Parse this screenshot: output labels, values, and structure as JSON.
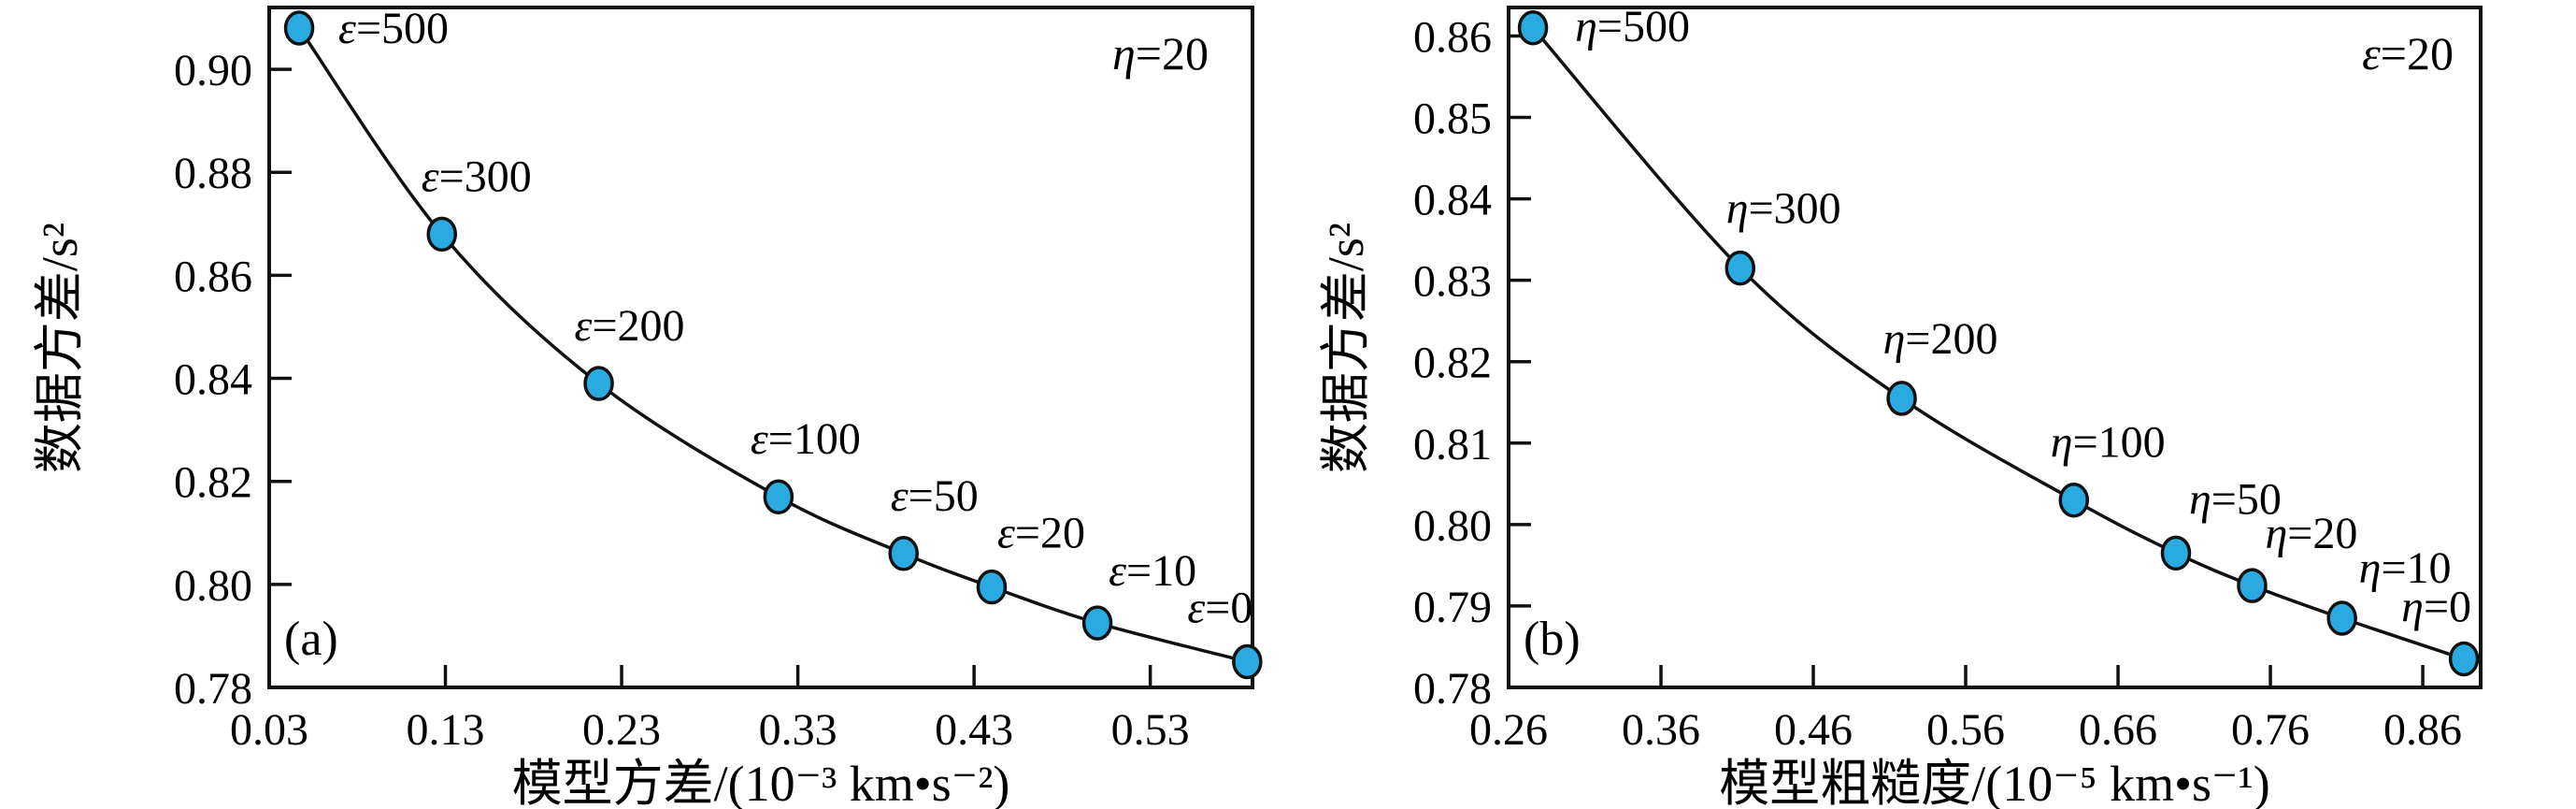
{
  "figure": {
    "background": "#ffffff",
    "colors": {
      "axis": "#111111",
      "curve": "#111111",
      "marker_fill": "#29abe2",
      "marker_stroke": "#111111",
      "text": "#000000"
    }
  },
  "chart_data": [
    {
      "id": "a",
      "type": "line",
      "panel_label": "(a)",
      "annotation": "η=20",
      "xlabel": "模型方差/(10⁻³ km•s⁻²)",
      "ylabel": "数据方差/s²",
      "xlim": [
        0.03,
        0.588
      ],
      "ylim": [
        0.78,
        0.912
      ],
      "xticks": [
        "0.03",
        "0.13",
        "0.23",
        "0.33",
        "0.43",
        "0.53"
      ],
      "yticks": [
        "0.78",
        "0.80",
        "0.82",
        "0.84",
        "0.86",
        "0.88",
        "0.90"
      ],
      "grid": false,
      "legend": false,
      "series": [
        {
          "name": "trade-off-curve-epsilon",
          "points": [
            {
              "label": "ε=500",
              "x": 0.047,
              "y": 0.908,
              "anchor": "start",
              "dx": 42,
              "dy": 16
            },
            {
              "label": "ε=300",
              "x": 0.128,
              "y": 0.868,
              "anchor": "start",
              "dx": -22,
              "dy": -46
            },
            {
              "label": "ε=200",
              "x": 0.217,
              "y": 0.839,
              "anchor": "start",
              "dx": -26,
              "dy": -46
            },
            {
              "label": "ε=100",
              "x": 0.319,
              "y": 0.817,
              "anchor": "start",
              "dx": -30,
              "dy": -46
            },
            {
              "label": "ε=50",
              "x": 0.39,
              "y": 0.806,
              "anchor": "start",
              "dx": -14,
              "dy": -46
            },
            {
              "label": "ε=20",
              "x": 0.44,
              "y": 0.7995,
              "anchor": "start",
              "dx": 6,
              "dy": -42
            },
            {
              "label": "ε=10",
              "x": 0.5,
              "y": 0.7925,
              "anchor": "start",
              "dx": 12,
              "dy": -40
            },
            {
              "label": "ε=0",
              "x": 0.585,
              "y": 0.785,
              "anchor": "end",
              "dx": 6,
              "dy": -42
            }
          ]
        }
      ]
    },
    {
      "id": "b",
      "type": "line",
      "panel_label": "(b)",
      "annotation": "ε=20",
      "xlabel": "模型粗糙度/(10⁻⁵ km•s⁻¹)",
      "ylabel": "数据方差/s²",
      "xlim": [
        0.26,
        0.898
      ],
      "ylim": [
        0.78,
        0.8635
      ],
      "xticks": [
        "0.26",
        "0.36",
        "0.46",
        "0.56",
        "0.66",
        "0.76",
        "0.86"
      ],
      "yticks": [
        "0.78",
        "0.79",
        "0.80",
        "0.81",
        "0.82",
        "0.83",
        "0.84",
        "0.85",
        "0.86"
      ],
      "grid": false,
      "legend": false,
      "series": [
        {
          "name": "trade-off-curve-eta",
          "points": [
            {
              "label": "η=500",
              "x": 0.276,
              "y": 0.861,
              "anchor": "start",
              "dx": 45,
              "dy": 14
            },
            {
              "label": "η=300",
              "x": 0.412,
              "y": 0.8315,
              "anchor": "start",
              "dx": -15,
              "dy": -48
            },
            {
              "label": "η=200",
              "x": 0.518,
              "y": 0.8155,
              "anchor": "start",
              "dx": -20,
              "dy": -48
            },
            {
              "label": "η=100",
              "x": 0.631,
              "y": 0.803,
              "anchor": "start",
              "dx": -25,
              "dy": -46
            },
            {
              "label": "η=50",
              "x": 0.698,
              "y": 0.7965,
              "anchor": "start",
              "dx": 14,
              "dy": -42
            },
            {
              "label": "η=20",
              "x": 0.748,
              "y": 0.7925,
              "anchor": "start",
              "dx": 14,
              "dy": -40
            },
            {
              "label": "η=10",
              "x": 0.807,
              "y": 0.7885,
              "anchor": "start",
              "dx": 18,
              "dy": -38
            },
            {
              "label": "η=0",
              "x": 0.887,
              "y": 0.7835,
              "anchor": "end",
              "dx": 8,
              "dy": -40
            }
          ]
        }
      ]
    }
  ]
}
